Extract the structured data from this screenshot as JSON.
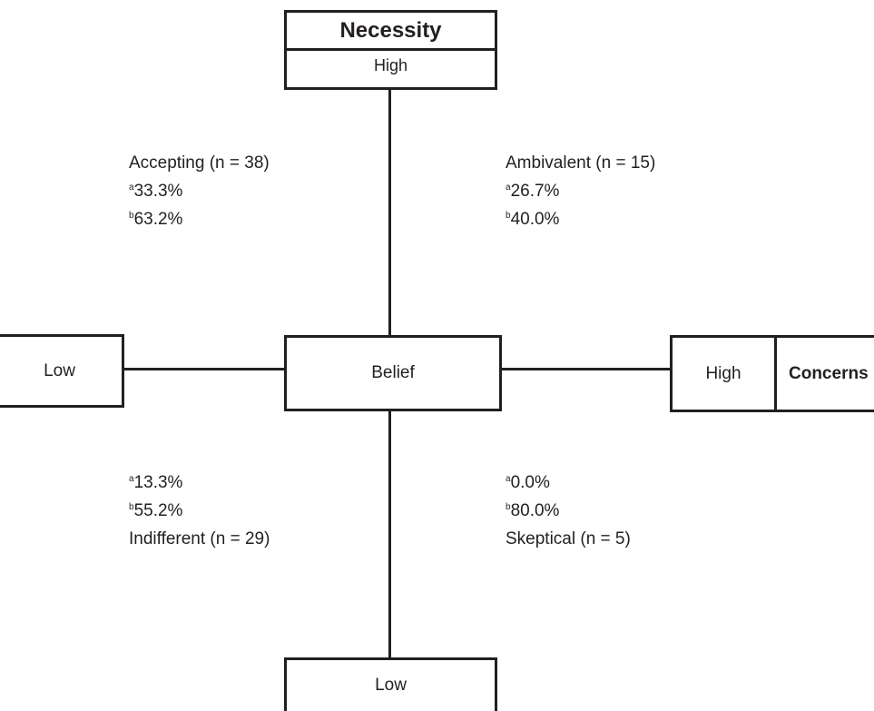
{
  "necessity": {
    "title": "Necessity",
    "high": "High",
    "low": "Low"
  },
  "concerns": {
    "title": "Concerns",
    "high": "High",
    "low": "Low"
  },
  "center": {
    "label": "Belief"
  },
  "quadrants": {
    "accepting": {
      "name": "Accepting (n = 38)",
      "a_mark": "a",
      "a_value": "33.3%",
      "b_mark": "b",
      "b_value": "63.2%"
    },
    "ambivalent": {
      "name": "Ambivalent (n = 15)",
      "a_mark": "a",
      "a_value": "26.7%",
      "b_mark": "b",
      "b_value": "40.0%"
    },
    "indifferent": {
      "name": "Indifferent (n = 29)",
      "a_mark": "a",
      "a_value": "13.3%",
      "b_mark": "b",
      "b_value": "55.2%"
    },
    "skeptical": {
      "name": "Skeptical (n = 5)",
      "a_mark": "a",
      "a_value": "0.0%",
      "b_mark": "b",
      "b_value": "80.0%"
    }
  }
}
